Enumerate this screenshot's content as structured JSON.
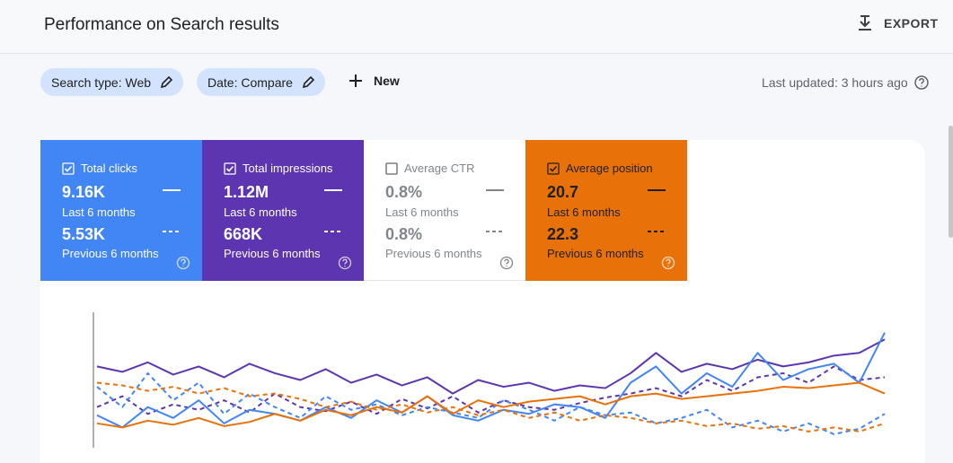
{
  "header": {
    "title": "Performance on Search results",
    "export": "EXPORT"
  },
  "filters": [
    "Search type: Web",
    "Date: Compare"
  ],
  "new": "New",
  "last_updated": "Last updated: 3 hours ago",
  "metrics": [
    {
      "label": "Total clicks",
      "checked": true,
      "color": "#4285f4",
      "text_color": "#ffffff",
      "current": "9.16K",
      "current_period": "Last 6 months",
      "previous": "5.53K",
      "previous_period": "Previous 6 months"
    },
    {
      "label": "Total impressions",
      "checked": true,
      "color": "#5e35b1",
      "text_color": "#ffffff",
      "current": "1.12M",
      "current_period": "Last 6 months",
      "previous": "668K",
      "previous_period": "Previous 6 months"
    },
    {
      "label": "Average CTR",
      "checked": false,
      "color": "#ffffff",
      "text_color": "#80868b",
      "current": "0.8%",
      "current_period": "Last 6 months",
      "previous": "0.8%",
      "previous_period": "Previous 6 months"
    },
    {
      "label": "Average position",
      "checked": true,
      "color": "#e8710a",
      "text_color": "#202124",
      "current": "20.7",
      "current_period": "Last 6 months",
      "previous": "22.3",
      "previous_period": "Previous 6 months"
    }
  ],
  "chart_data": {
    "type": "line",
    "ylim": [
      0,
      100
    ],
    "series": [
      {
        "color": "#5e35b1",
        "dash": false,
        "values": [
          60,
          56,
          63,
          54,
          60,
          52,
          62,
          55,
          50,
          58,
          48,
          54,
          46,
          52,
          40,
          50,
          45,
          48,
          42,
          46,
          44,
          55,
          70,
          56,
          62,
          58,
          65,
          60,
          63,
          68,
          70,
          80
        ]
      },
      {
        "color": "#5e35b1",
        "dash": true,
        "values": [
          30,
          38,
          25,
          32,
          28,
          35,
          26,
          40,
          30,
          27,
          34,
          25,
          36,
          29,
          38,
          26,
          35,
          30,
          28,
          33,
          37,
          40,
          44,
          38,
          50,
          42,
          52,
          55,
          48,
          60,
          50,
          52
        ]
      },
      {
        "color": "#4285f4",
        "dash": false,
        "values": [
          24,
          15,
          30,
          22,
          35,
          18,
          28,
          25,
          20,
          30,
          22,
          35,
          26,
          38,
          24,
          20,
          28,
          25,
          32,
          30,
          22,
          48,
          60,
          40,
          55,
          45,
          70,
          50,
          58,
          62,
          48,
          85
        ]
      },
      {
        "color": "#4285f4",
        "dash": true,
        "values": [
          45,
          30,
          55,
          35,
          48,
          25,
          40,
          30,
          22,
          38,
          28,
          32,
          24,
          30,
          26,
          22,
          35,
          28,
          20,
          30,
          24,
          26,
          18,
          22,
          28,
          15,
          20,
          12,
          18,
          10,
          14,
          25
        ]
      },
      {
        "color": "#e8710a",
        "dash": false,
        "values": [
          18,
          15,
          20,
          17,
          22,
          16,
          19,
          25,
          20,
          28,
          24,
          30,
          26,
          38,
          25,
          35,
          30,
          34,
          36,
          38,
          32,
          38,
          40,
          36,
          38,
          40,
          42,
          45,
          44,
          46,
          48,
          40
        ]
      },
      {
        "color": "#e8710a",
        "dash": true,
        "values": [
          48,
          46,
          42,
          45,
          40,
          44,
          38,
          40,
          36,
          30,
          34,
          28,
          32,
          26,
          30,
          24,
          28,
          22,
          26,
          20,
          24,
          22,
          18,
          20,
          16,
          18,
          14,
          16,
          12,
          15,
          12,
          18
        ]
      }
    ]
  }
}
